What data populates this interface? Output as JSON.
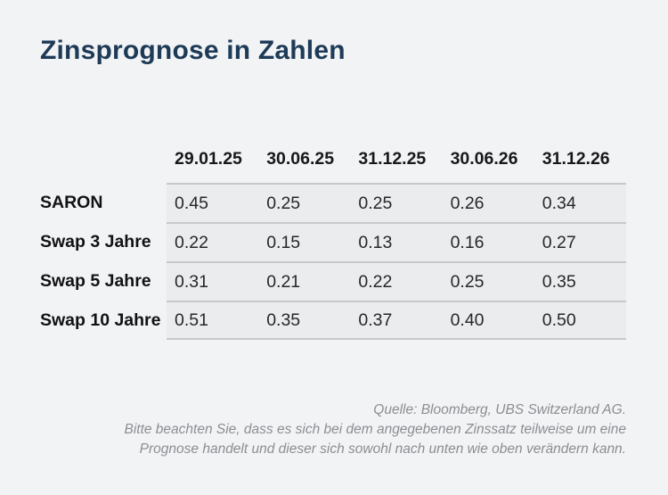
{
  "title": "Zinsprognose in Zahlen",
  "table": {
    "column_headers": [
      "29.01.25",
      "30.06.25",
      "31.12.25",
      "30.06.26",
      "31.12.26"
    ],
    "rows": [
      {
        "label": "SARON",
        "values": [
          "0.45",
          "0.25",
          "0.25",
          "0.26",
          "0.34"
        ]
      },
      {
        "label": "Swap 3 Jahre",
        "values": [
          "0.22",
          "0.15",
          "0.13",
          "0.16",
          "0.27"
        ]
      },
      {
        "label": "Swap 5 Jahre",
        "values": [
          "0.31",
          "0.21",
          "0.22",
          "0.25",
          "0.35"
        ]
      },
      {
        "label": "Swap 10 Jahre",
        "values": [
          "0.51",
          "0.35",
          "0.37",
          "0.40",
          "0.50"
        ]
      }
    ]
  },
  "footer": {
    "source": "Quelle: Bloomberg, UBS Switzerland AG.",
    "disclaimer_lines": [
      "Bitte beachten Sie, dass es sich bei dem angegebenen Zinssatz teilweise um eine",
      "Prognose handelt und dieser sich sowohl nach unten wie oben verändern kann."
    ]
  },
  "colors": {
    "background": "#f2f3f5",
    "row_band": "#ebecee",
    "separator_line": "#c6c8cb",
    "title_navy": "#1d3a57",
    "footer_gray": "#8b8e92"
  },
  "chart_data": {
    "type": "table",
    "title": "Zinsprognose in Zahlen",
    "columns": [
      "29.01.25",
      "30.06.25",
      "31.12.25",
      "30.06.26",
      "31.12.26"
    ],
    "rows": [
      {
        "label": "SARON",
        "values": [
          0.45,
          0.25,
          0.25,
          0.26,
          0.34
        ]
      },
      {
        "label": "Swap 3 Jahre",
        "values": [
          0.22,
          0.15,
          0.13,
          0.16,
          0.27
        ]
      },
      {
        "label": "Swap 5 Jahre",
        "values": [
          0.31,
          0.21,
          0.22,
          0.25,
          0.35
        ]
      },
      {
        "label": "Swap 10 Jahre",
        "values": [
          0.51,
          0.35,
          0.37,
          0.4,
          0.5
        ]
      }
    ],
    "source": "Quelle: Bloomberg, UBS Switzerland AG.",
    "note": "Bitte beachten Sie, dass es sich bei dem angegebenen Zinssatz teilweise um eine Prognose handelt und dieser sich sowohl nach unten wie oben verändern kann."
  }
}
